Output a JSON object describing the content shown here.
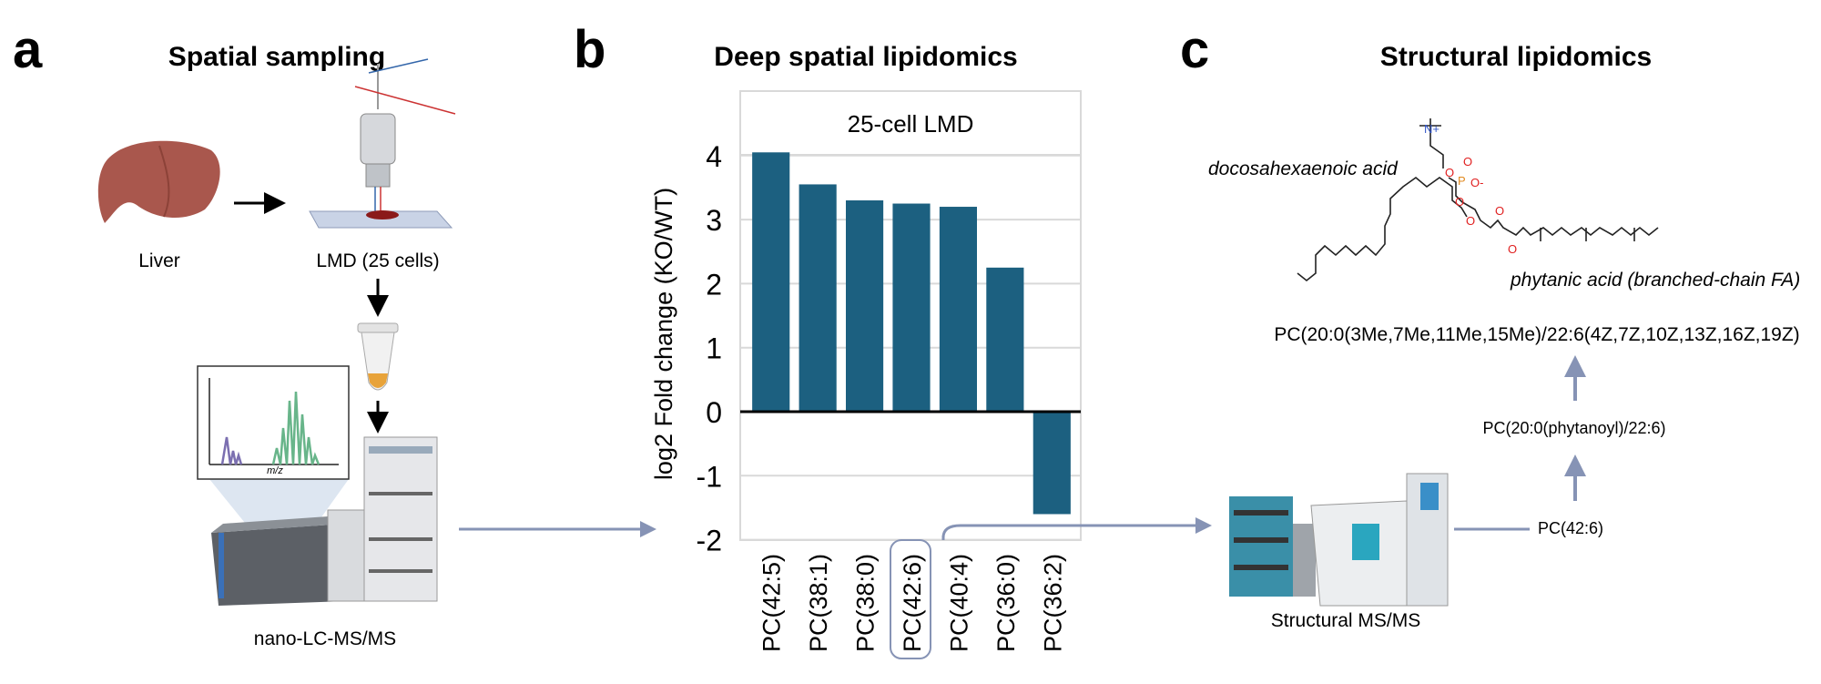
{
  "panels": {
    "a": {
      "letter": "a",
      "title": "Spatial sampling",
      "liver": "Liver",
      "lmd": "LMD (25 cells)",
      "mz": "m/z",
      "instrument": "nano-LC-MS/MS"
    },
    "b": {
      "letter": "b",
      "title": "Deep spatial lipidomics"
    },
    "c": {
      "letter": "c",
      "title": "Structural lipidomics",
      "dha": "docosahexaenoic acid",
      "phytanic": "phytanic acid (branched-chain FA)",
      "full_name": "PC(20:0(3Me,7Me,11Me,15Me)/22:6(4Z,7Z,10Z,13Z,16Z,19Z)",
      "mid_name": "PC(20:0(phytanoyl)/22:6)",
      "species": "PC(42:6)",
      "instrument": "Structural MS/MS"
    }
  },
  "colors": {
    "bar": "#1c6080",
    "arrow": "#8693b5",
    "grid": "#d9d9d9"
  },
  "chart_data": {
    "type": "bar",
    "title": "25-cell LMD",
    "xlabel": "",
    "ylabel": "log2 Fold change (KO/WT)",
    "categories": [
      "PC(42:5)",
      "PC(38:1)",
      "PC(38:0)",
      "PC(42:6)",
      "PC(40:4)",
      "PC(36:0)",
      "PC(36:2)"
    ],
    "values": [
      4.05,
      3.55,
      3.3,
      3.25,
      3.2,
      2.25,
      -1.6
    ],
    "yticks": [
      "-2",
      "-1",
      "0",
      "1",
      "2",
      "3",
      "4"
    ],
    "ylim": [
      -2.2,
      5
    ],
    "grid": true,
    "highlighted": "PC(42:6)"
  }
}
